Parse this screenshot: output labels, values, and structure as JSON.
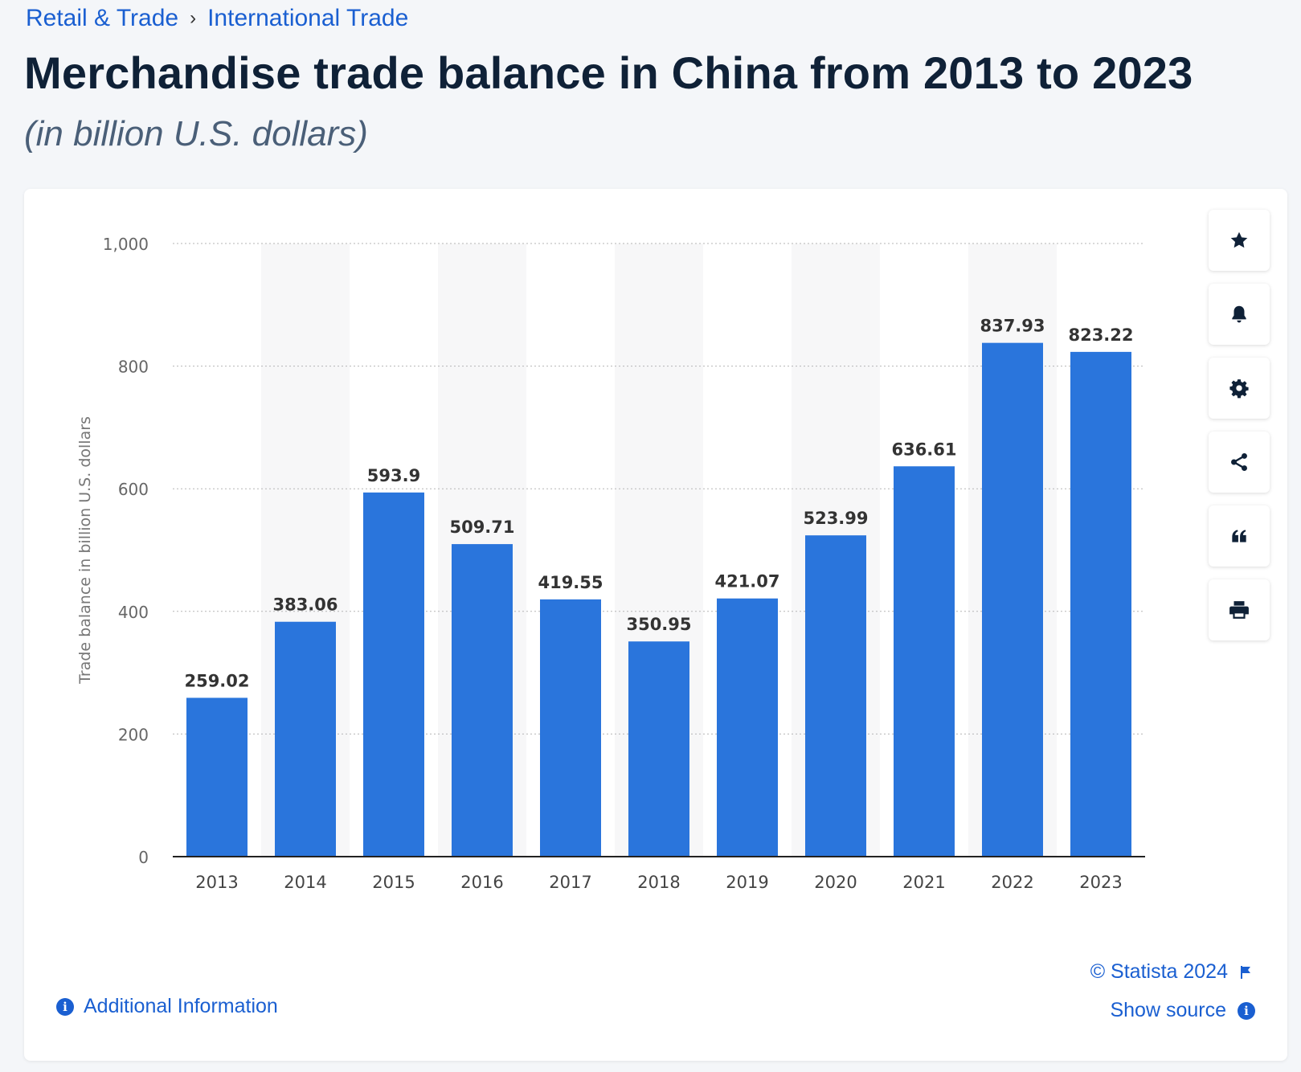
{
  "breadcrumb": {
    "items": [
      "Retail & Trade",
      "International Trade"
    ],
    "separator": "›"
  },
  "title": "Merchandise trade balance in China from 2013 to 2023",
  "subtitle": "(in billion U.S. dollars)",
  "toolbar": {
    "icons": [
      "star-icon",
      "bell-icon",
      "gear-icon",
      "share-icon",
      "quote-icon",
      "print-icon"
    ]
  },
  "footer": {
    "additional_info": "Additional Information",
    "copyright": "© Statista 2024",
    "show_source": "Show source",
    "info_glyph": "i"
  },
  "colors": {
    "bar": "#2a75dc",
    "link": "#1a5fd1",
    "title": "#0f2137",
    "band": "#f7f7f8"
  },
  "chart_data": {
    "type": "bar",
    "categories": [
      "2013",
      "2014",
      "2015",
      "2016",
      "2017",
      "2018",
      "2019",
      "2020",
      "2021",
      "2022",
      "2023"
    ],
    "values": [
      259.02,
      383.06,
      593.9,
      509.71,
      419.55,
      350.95,
      421.07,
      523.99,
      636.61,
      837.93,
      823.22
    ],
    "value_labels": [
      "259.02",
      "383.06",
      "593.9",
      "509.71",
      "419.55",
      "350.95",
      "421.07",
      "523.99",
      "636.61",
      "837.93",
      "823.22"
    ],
    "ylabel": "Trade balance in billion U.S. dollars",
    "xlabel": "",
    "ylim": [
      0,
      1000
    ],
    "yticks": [
      0,
      200,
      400,
      600,
      800,
      1000
    ],
    "ytick_labels": [
      "0",
      "200",
      "400",
      "600",
      "800",
      "1,000"
    ],
    "grid": true
  }
}
